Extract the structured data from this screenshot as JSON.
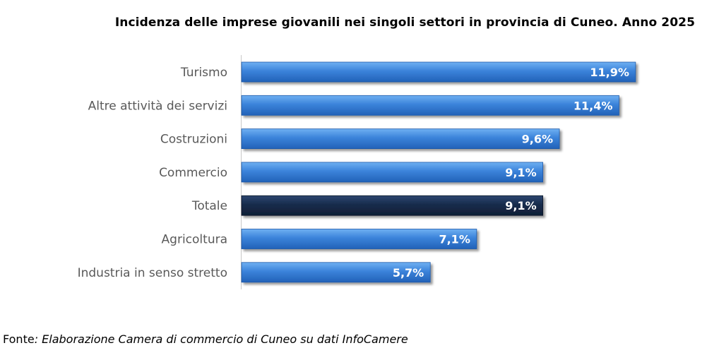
{
  "chart_data": {
    "type": "bar",
    "orientation": "horizontal",
    "title": "Incidenza delle imprese giovanili nei singoli settori in provincia di Cuneo. Anno 2025",
    "categories": [
      "Turismo",
      "Altre attività dei servizi",
      "Costruzioni",
      "Commercio",
      "Totale",
      "Agricoltura",
      "Industria in senso stretto"
    ],
    "values": [
      11.9,
      11.4,
      9.6,
      9.1,
      9.1,
      7.1,
      5.7
    ],
    "data_labels": [
      "11,9%",
      "11,4%",
      "9,6%",
      "9,1%",
      "9,1%",
      "7,1%",
      "5,7%"
    ],
    "unit": "%",
    "xlim": [
      0,
      12.5
    ],
    "highlight_category": "Totale",
    "grid": false,
    "legend": "none",
    "colors": {
      "bar": "#3a7fd5",
      "bar_highlight": "#172a48",
      "label_text": "#ffffff"
    }
  },
  "footer": {
    "source_prefix": "Fonte",
    "source_text": ": Elaborazione Camera di commercio di Cuneo su dati InfoCamere"
  }
}
